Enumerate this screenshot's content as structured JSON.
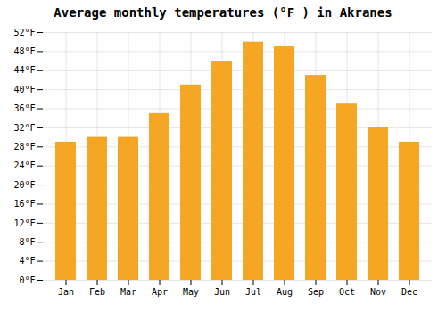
{
  "chart_data": {
    "type": "bar",
    "title": "Average monthly temperatures (°F ) in Akranes",
    "categories": [
      "Jan",
      "Feb",
      "Mar",
      "Apr",
      "May",
      "Jun",
      "Jul",
      "Aug",
      "Sep",
      "Oct",
      "Nov",
      "Dec"
    ],
    "values": [
      29,
      30,
      30,
      35,
      41,
      46,
      50,
      49,
      43,
      37,
      32,
      29
    ],
    "color": "#F5A623",
    "ylim": [
      0,
      52
    ],
    "yticks": [
      {
        "value": 0,
        "label": "0°F"
      },
      {
        "value": 4,
        "label": "4°F"
      },
      {
        "value": 8,
        "label": "8°F"
      },
      {
        "value": 12,
        "label": "12°F"
      },
      {
        "value": 16,
        "label": "16°F"
      },
      {
        "value": 20,
        "label": "20°F"
      },
      {
        "value": 24,
        "label": "24°F"
      },
      {
        "value": 28,
        "label": "28°F"
      },
      {
        "value": 32,
        "label": "32°F"
      },
      {
        "value": 36,
        "label": "36°F"
      },
      {
        "value": 40,
        "label": "40°F"
      },
      {
        "value": 44,
        "label": "44°F"
      },
      {
        "value": 48,
        "label": "48°F"
      },
      {
        "value": 52,
        "label": "52°F"
      }
    ],
    "grid": true
  }
}
